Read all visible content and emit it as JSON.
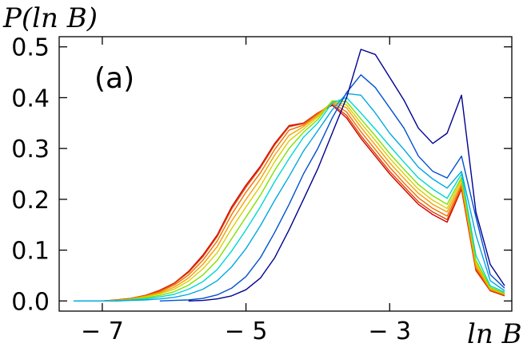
{
  "chart_data": {
    "type": "line",
    "ylabel": "P(ln B)",
    "xlabel": "ln B",
    "annotation": "(a)",
    "xlim": [
      -7.6,
      -1.3
    ],
    "ylim": [
      -0.02,
      0.52
    ],
    "xticks": [
      -7,
      -5,
      -3
    ],
    "xtick_labels": [
      "− 7",
      "− 5",
      "− 3"
    ],
    "yticks": [
      0.0,
      0.1,
      0.2,
      0.3,
      0.4,
      0.5
    ],
    "ytick_labels": [
      "0.0",
      "0.1",
      "0.2",
      "0.3",
      "0.4",
      "0.5"
    ],
    "grid": false,
    "legend": "none",
    "x": [
      -7.4,
      -7.2,
      -7.0,
      -6.8,
      -6.6,
      -6.4,
      -6.2,
      -6.0,
      -5.8,
      -5.6,
      -5.4,
      -5.2,
      -5.0,
      -4.8,
      -4.6,
      -4.4,
      -4.2,
      -4.0,
      -3.8,
      -3.6,
      -3.4,
      -3.2,
      -3.0,
      -2.8,
      -2.6,
      -2.4,
      -2.2,
      -2.0,
      -1.8,
      -1.6,
      -1.4
    ],
    "series": [
      {
        "color": "#d00000",
        "values": [
          0.0,
          0.0,
          0.0,
          0.002,
          0.005,
          0.011,
          0.021,
          0.035,
          0.058,
          0.09,
          0.13,
          0.185,
          0.228,
          0.265,
          0.31,
          0.345,
          0.35,
          0.37,
          0.385,
          0.36,
          0.32,
          0.285,
          0.25,
          0.22,
          0.19,
          0.17,
          0.155,
          0.22,
          0.06,
          0.02,
          0.01
        ]
      },
      {
        "color": "#e04000",
        "values": [
          0.0,
          0.0,
          0.0,
          0.002,
          0.005,
          0.011,
          0.02,
          0.034,
          0.056,
          0.087,
          0.127,
          0.181,
          0.224,
          0.262,
          0.307,
          0.343,
          0.349,
          0.37,
          0.387,
          0.365,
          0.325,
          0.29,
          0.255,
          0.225,
          0.195,
          0.175,
          0.16,
          0.222,
          0.062,
          0.021,
          0.011
        ]
      },
      {
        "color": "#f07000",
        "values": [
          0.0,
          0.0,
          0.0,
          0.001,
          0.004,
          0.01,
          0.018,
          0.031,
          0.051,
          0.08,
          0.118,
          0.17,
          0.214,
          0.252,
          0.298,
          0.336,
          0.346,
          0.368,
          0.39,
          0.372,
          0.333,
          0.298,
          0.263,
          0.232,
          0.203,
          0.182,
          0.167,
          0.227,
          0.065,
          0.022,
          0.012
        ]
      },
      {
        "color": "#f5a000",
        "values": [
          0.0,
          0.0,
          0.0,
          0.001,
          0.004,
          0.009,
          0.016,
          0.027,
          0.045,
          0.072,
          0.107,
          0.157,
          0.2,
          0.24,
          0.287,
          0.326,
          0.343,
          0.365,
          0.392,
          0.38,
          0.342,
          0.307,
          0.272,
          0.241,
          0.212,
          0.19,
          0.175,
          0.232,
          0.07,
          0.023,
          0.013
        ]
      },
      {
        "color": "#d8d000",
        "values": [
          0.0,
          0.0,
          0.0,
          0.001,
          0.003,
          0.008,
          0.014,
          0.023,
          0.039,
          0.063,
          0.095,
          0.142,
          0.185,
          0.226,
          0.274,
          0.315,
          0.338,
          0.362,
          0.393,
          0.386,
          0.35,
          0.316,
          0.281,
          0.25,
          0.22,
          0.198,
          0.182,
          0.238,
          0.075,
          0.025,
          0.014
        ]
      },
      {
        "color": "#80e000",
        "values": [
          0.0,
          0.0,
          0.0,
          0.001,
          0.003,
          0.006,
          0.011,
          0.018,
          0.031,
          0.051,
          0.08,
          0.122,
          0.165,
          0.208,
          0.257,
          0.3,
          0.332,
          0.357,
          0.394,
          0.392,
          0.358,
          0.325,
          0.29,
          0.259,
          0.229,
          0.207,
          0.19,
          0.243,
          0.08,
          0.027,
          0.015
        ]
      },
      {
        "color": "#00d8d0",
        "values": [
          0.0,
          0.0,
          0.0,
          0.0,
          0.002,
          0.004,
          0.008,
          0.013,
          0.023,
          0.038,
          0.062,
          0.098,
          0.14,
          0.185,
          0.235,
          0.28,
          0.322,
          0.35,
          0.39,
          0.4,
          0.37,
          0.338,
          0.305,
          0.273,
          0.242,
          0.22,
          0.202,
          0.25,
          0.09,
          0.03,
          0.017
        ]
      },
      {
        "color": "#00a8e0",
        "values": [
          0.0,
          0.0,
          0.0,
          0.0,
          0.001,
          0.002,
          0.004,
          0.007,
          0.013,
          0.023,
          0.04,
          0.067,
          0.103,
          0.148,
          0.198,
          0.245,
          0.295,
          0.335,
          0.376,
          0.408,
          0.405,
          0.37,
          0.33,
          0.298,
          0.263,
          0.24,
          0.222,
          0.255,
          0.13,
          0.04,
          0.02
        ]
      },
      {
        "color": "#0050d0",
        "values": [
          null,
          null,
          null,
          null,
          null,
          null,
          0.0,
          0.001,
          0.002,
          0.005,
          0.012,
          0.025,
          0.048,
          0.085,
          0.135,
          0.19,
          0.25,
          0.3,
          0.36,
          0.41,
          0.445,
          0.42,
          0.38,
          0.34,
          0.285,
          0.255,
          0.242,
          0.285,
          0.165,
          0.052,
          0.025
        ]
      },
      {
        "color": "#000090",
        "values": [
          null,
          null,
          null,
          null,
          null,
          null,
          null,
          null,
          0.0,
          0.001,
          0.004,
          0.01,
          0.022,
          0.045,
          0.085,
          0.14,
          0.2,
          0.26,
          0.33,
          0.4,
          0.495,
          0.485,
          0.44,
          0.395,
          0.34,
          0.31,
          0.33,
          0.405,
          0.175,
          0.072,
          0.03
        ]
      }
    ]
  }
}
